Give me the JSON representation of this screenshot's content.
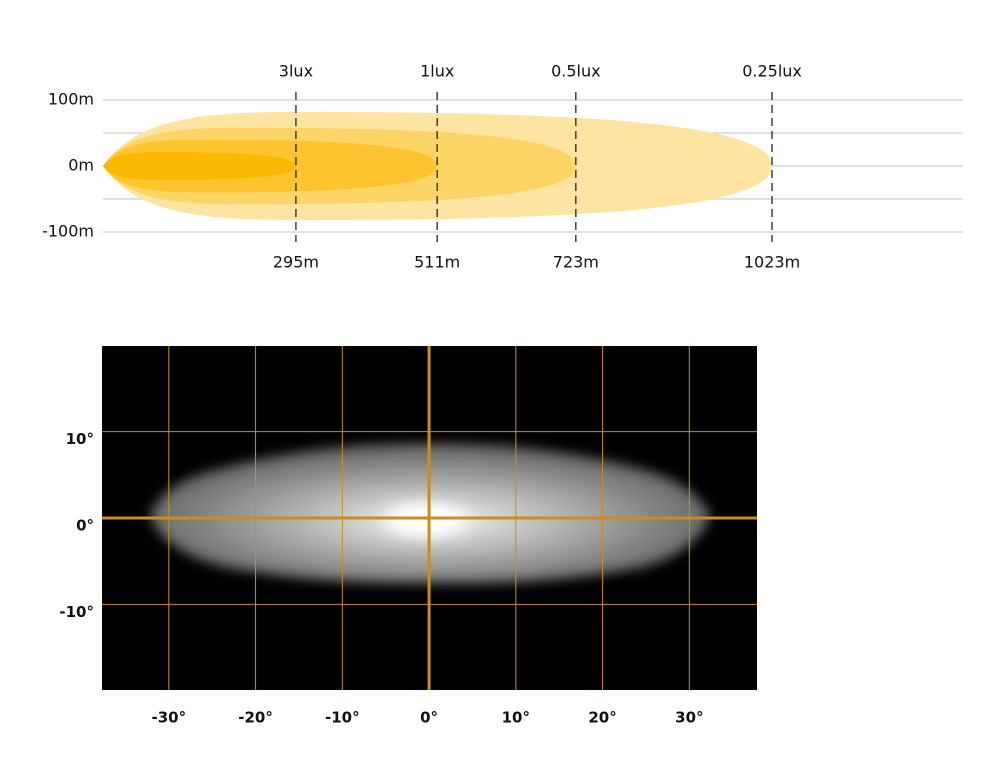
{
  "chart_data": [
    {
      "type": "beam",
      "categories": [
        "3lux",
        "1lux",
        "0.5lux",
        "0.25lux"
      ],
      "values": [
        295,
        511,
        723,
        1023
      ],
      "value_labels": [
        "295m",
        "511m",
        "723m",
        "1023m"
      ],
      "half_widths": [
        21,
        40,
        58,
        82
      ],
      "colors": [
        "#fbb800",
        "#fcc52f",
        "#fdd466",
        "#fee4a3"
      ],
      "xlim": [
        0,
        1315
      ],
      "ylim": [
        -100,
        100
      ],
      "yticks": [
        {
          "value": 100,
          "label": "100m"
        },
        {
          "value": 0,
          "label": "0m"
        },
        {
          "value": -100,
          "label": "-100m"
        }
      ],
      "minor_yticks": [
        50,
        -50
      ],
      "grid": true
    },
    {
      "type": "isolux",
      "xlim": [
        -37.7,
        37.8
      ],
      "ylim": [
        -19.9,
        19.9
      ],
      "xticks": [
        {
          "value": -30,
          "label": "-30°"
        },
        {
          "value": -20,
          "label": "-20°"
        },
        {
          "value": -10,
          "label": "-10°"
        },
        {
          "value": 0,
          "label": "0°"
        },
        {
          "value": 10,
          "label": "10°"
        },
        {
          "value": 20,
          "label": "20°"
        },
        {
          "value": 30,
          "label": "30°"
        }
      ],
      "yticks": [
        {
          "value": 10,
          "label": "10°"
        },
        {
          "value": 0,
          "label": "0°"
        },
        {
          "value": -10,
          "label": "-10°"
        }
      ],
      "grid": true,
      "zero_line": true,
      "grid_color": "#c98e1e"
    }
  ]
}
